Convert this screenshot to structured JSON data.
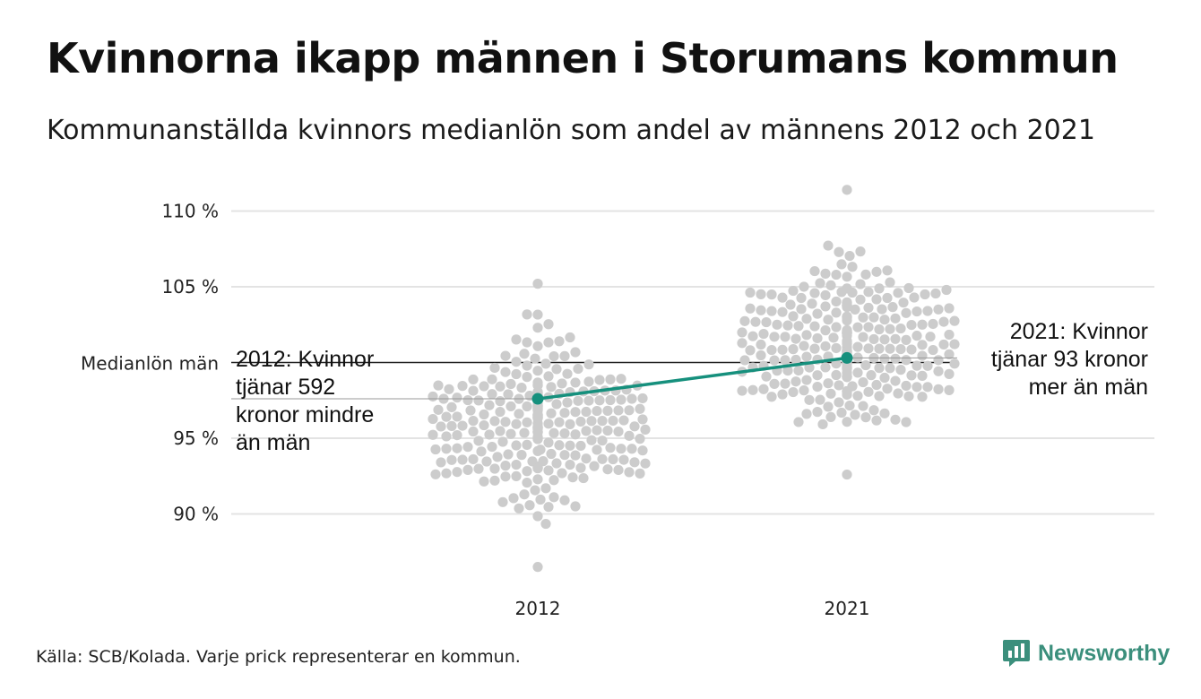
{
  "title": "Kvinnorna ikapp männen i Storumans kommun",
  "subtitle": "Kommunanställda kvinnors medianlön som andel av männens 2012 och 2021",
  "source": "Källa: SCB/Kolada. Varje prick representerar en kommun.",
  "brand": "Newsworthy",
  "colors": {
    "dots": "#cccccc",
    "highlight": "#16907d",
    "grid": "#e3e3e3",
    "reference_line": "#222222",
    "brand": "#3b8f7c"
  },
  "icons": {
    "brand": "bar-chart-speech-bubble-icon"
  },
  "chart_data": {
    "type": "scatter",
    "categories": [
      "2012",
      "2021"
    ],
    "ylim": [
      86,
      112
    ],
    "yticks": [
      {
        "value": 90,
        "label": "90 %"
      },
      {
        "value": 95,
        "label": "95 %"
      },
      {
        "value": 105,
        "label": "105 %"
      },
      {
        "value": 110,
        "label": "110 %"
      }
    ],
    "reference": {
      "value": 100,
      "label": "Medianlön män"
    },
    "grid": true,
    "distributions": [
      {
        "category": "2012",
        "count": 290,
        "min": 86.5,
        "max": 105.2,
        "median": 96.0
      },
      {
        "category": "2021",
        "count": 290,
        "min": 92.6,
        "max": 111.4,
        "median": 101.0
      }
    ],
    "series": [
      {
        "name": "Storumans kommun",
        "points": [
          {
            "x": "2012",
            "y": 97.6
          },
          {
            "x": "2021",
            "y": 100.3
          }
        ]
      }
    ],
    "annotations": [
      {
        "category": "2012",
        "lines": [
          "2012: Kvinnor",
          "tjänar 592",
          "kronor mindre",
          "än män"
        ],
        "align": "left"
      },
      {
        "category": "2021",
        "lines": [
          "2021: Kvinnor",
          "tjänar 93 kronor",
          "mer än män"
        ],
        "align": "right"
      }
    ]
  }
}
